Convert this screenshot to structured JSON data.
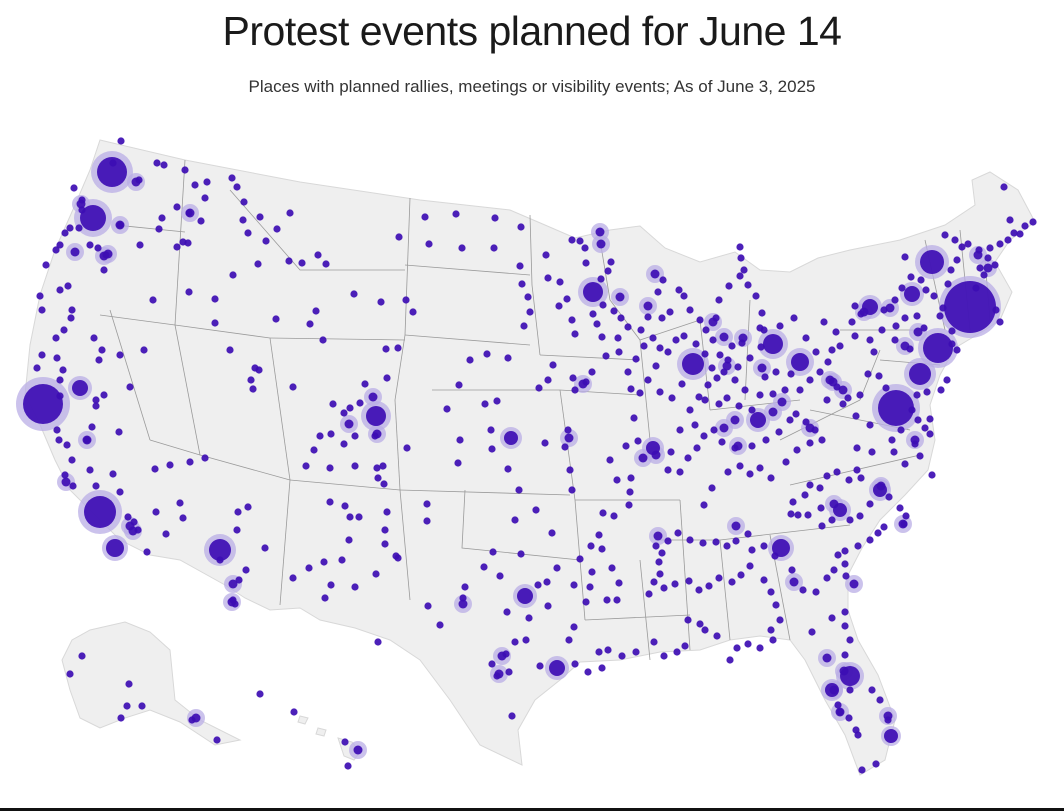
{
  "header": {
    "title": "Protest events planned for June 14",
    "subtitle": "Places with planned rallies, meetings or visibility events; As of June 3, 2025"
  },
  "colors": {
    "land": "#efefef",
    "state_border": "#9a9a9a",
    "dot": "#3d0db3",
    "halo": "#b9aee6"
  },
  "map": {
    "region": "United States (lower 48, Alaska, Hawaii)",
    "marker_meaning": "Planned protest events; larger circles indicate more events in an area"
  }
}
